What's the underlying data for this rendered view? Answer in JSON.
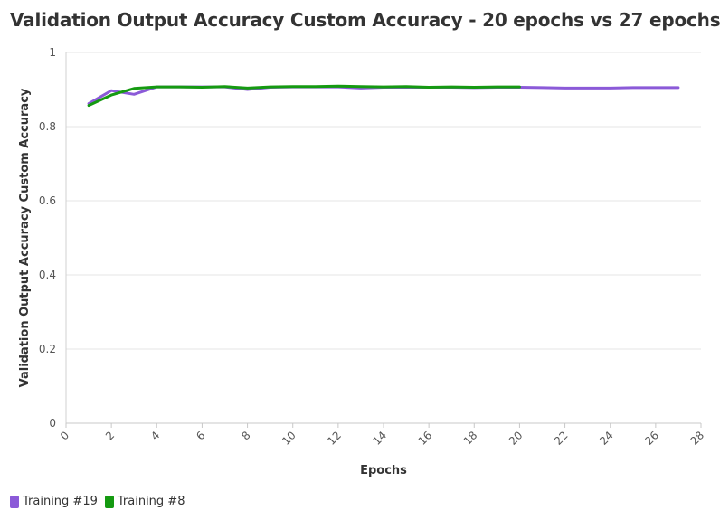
{
  "chart_data": {
    "type": "line",
    "title": "Validation Output Accuracy Custom Accuracy - 20 epochs vs 27 epochs",
    "xlabel": "Epochs",
    "ylabel": "Validation Output Accuracy Custom Accuracy",
    "xlim": [
      0,
      28
    ],
    "ylim": [
      0,
      1
    ],
    "x_ticks": [
      "0",
      "2",
      "4",
      "6",
      "8",
      "10",
      "12",
      "14",
      "16",
      "18",
      "20",
      "22",
      "24",
      "26",
      "28"
    ],
    "y_ticks": [
      "0",
      "0.2",
      "0.4",
      "0.6",
      "0.8",
      "1"
    ],
    "grid": true,
    "legend_position": "bottom-left",
    "series": [
      {
        "name": "Training #19",
        "color": "#8b5ad8",
        "x": [
          1,
          2,
          3,
          4,
          5,
          6,
          7,
          8,
          9,
          10,
          11,
          12,
          13,
          14,
          15,
          16,
          17,
          18,
          19,
          20,
          21,
          22,
          23,
          24,
          25,
          26,
          27
        ],
        "y": [
          0.862,
          0.897,
          0.887,
          0.907,
          0.907,
          0.907,
          0.907,
          0.9,
          0.906,
          0.907,
          0.907,
          0.907,
          0.904,
          0.906,
          0.906,
          0.906,
          0.906,
          0.905,
          0.906,
          0.906,
          0.905,
          0.904,
          0.904,
          0.904,
          0.905,
          0.905,
          0.905
        ]
      },
      {
        "name": "Training #8",
        "color": "#159a11",
        "x": [
          1,
          2,
          3,
          4,
          5,
          6,
          7,
          8,
          9,
          10,
          11,
          12,
          13,
          14,
          15,
          16,
          17,
          18,
          19,
          20
        ],
        "y": [
          0.857,
          0.885,
          0.903,
          0.907,
          0.907,
          0.906,
          0.908,
          0.904,
          0.907,
          0.908,
          0.908,
          0.909,
          0.908,
          0.907,
          0.908,
          0.906,
          0.907,
          0.906,
          0.907,
          0.907
        ]
      }
    ]
  }
}
